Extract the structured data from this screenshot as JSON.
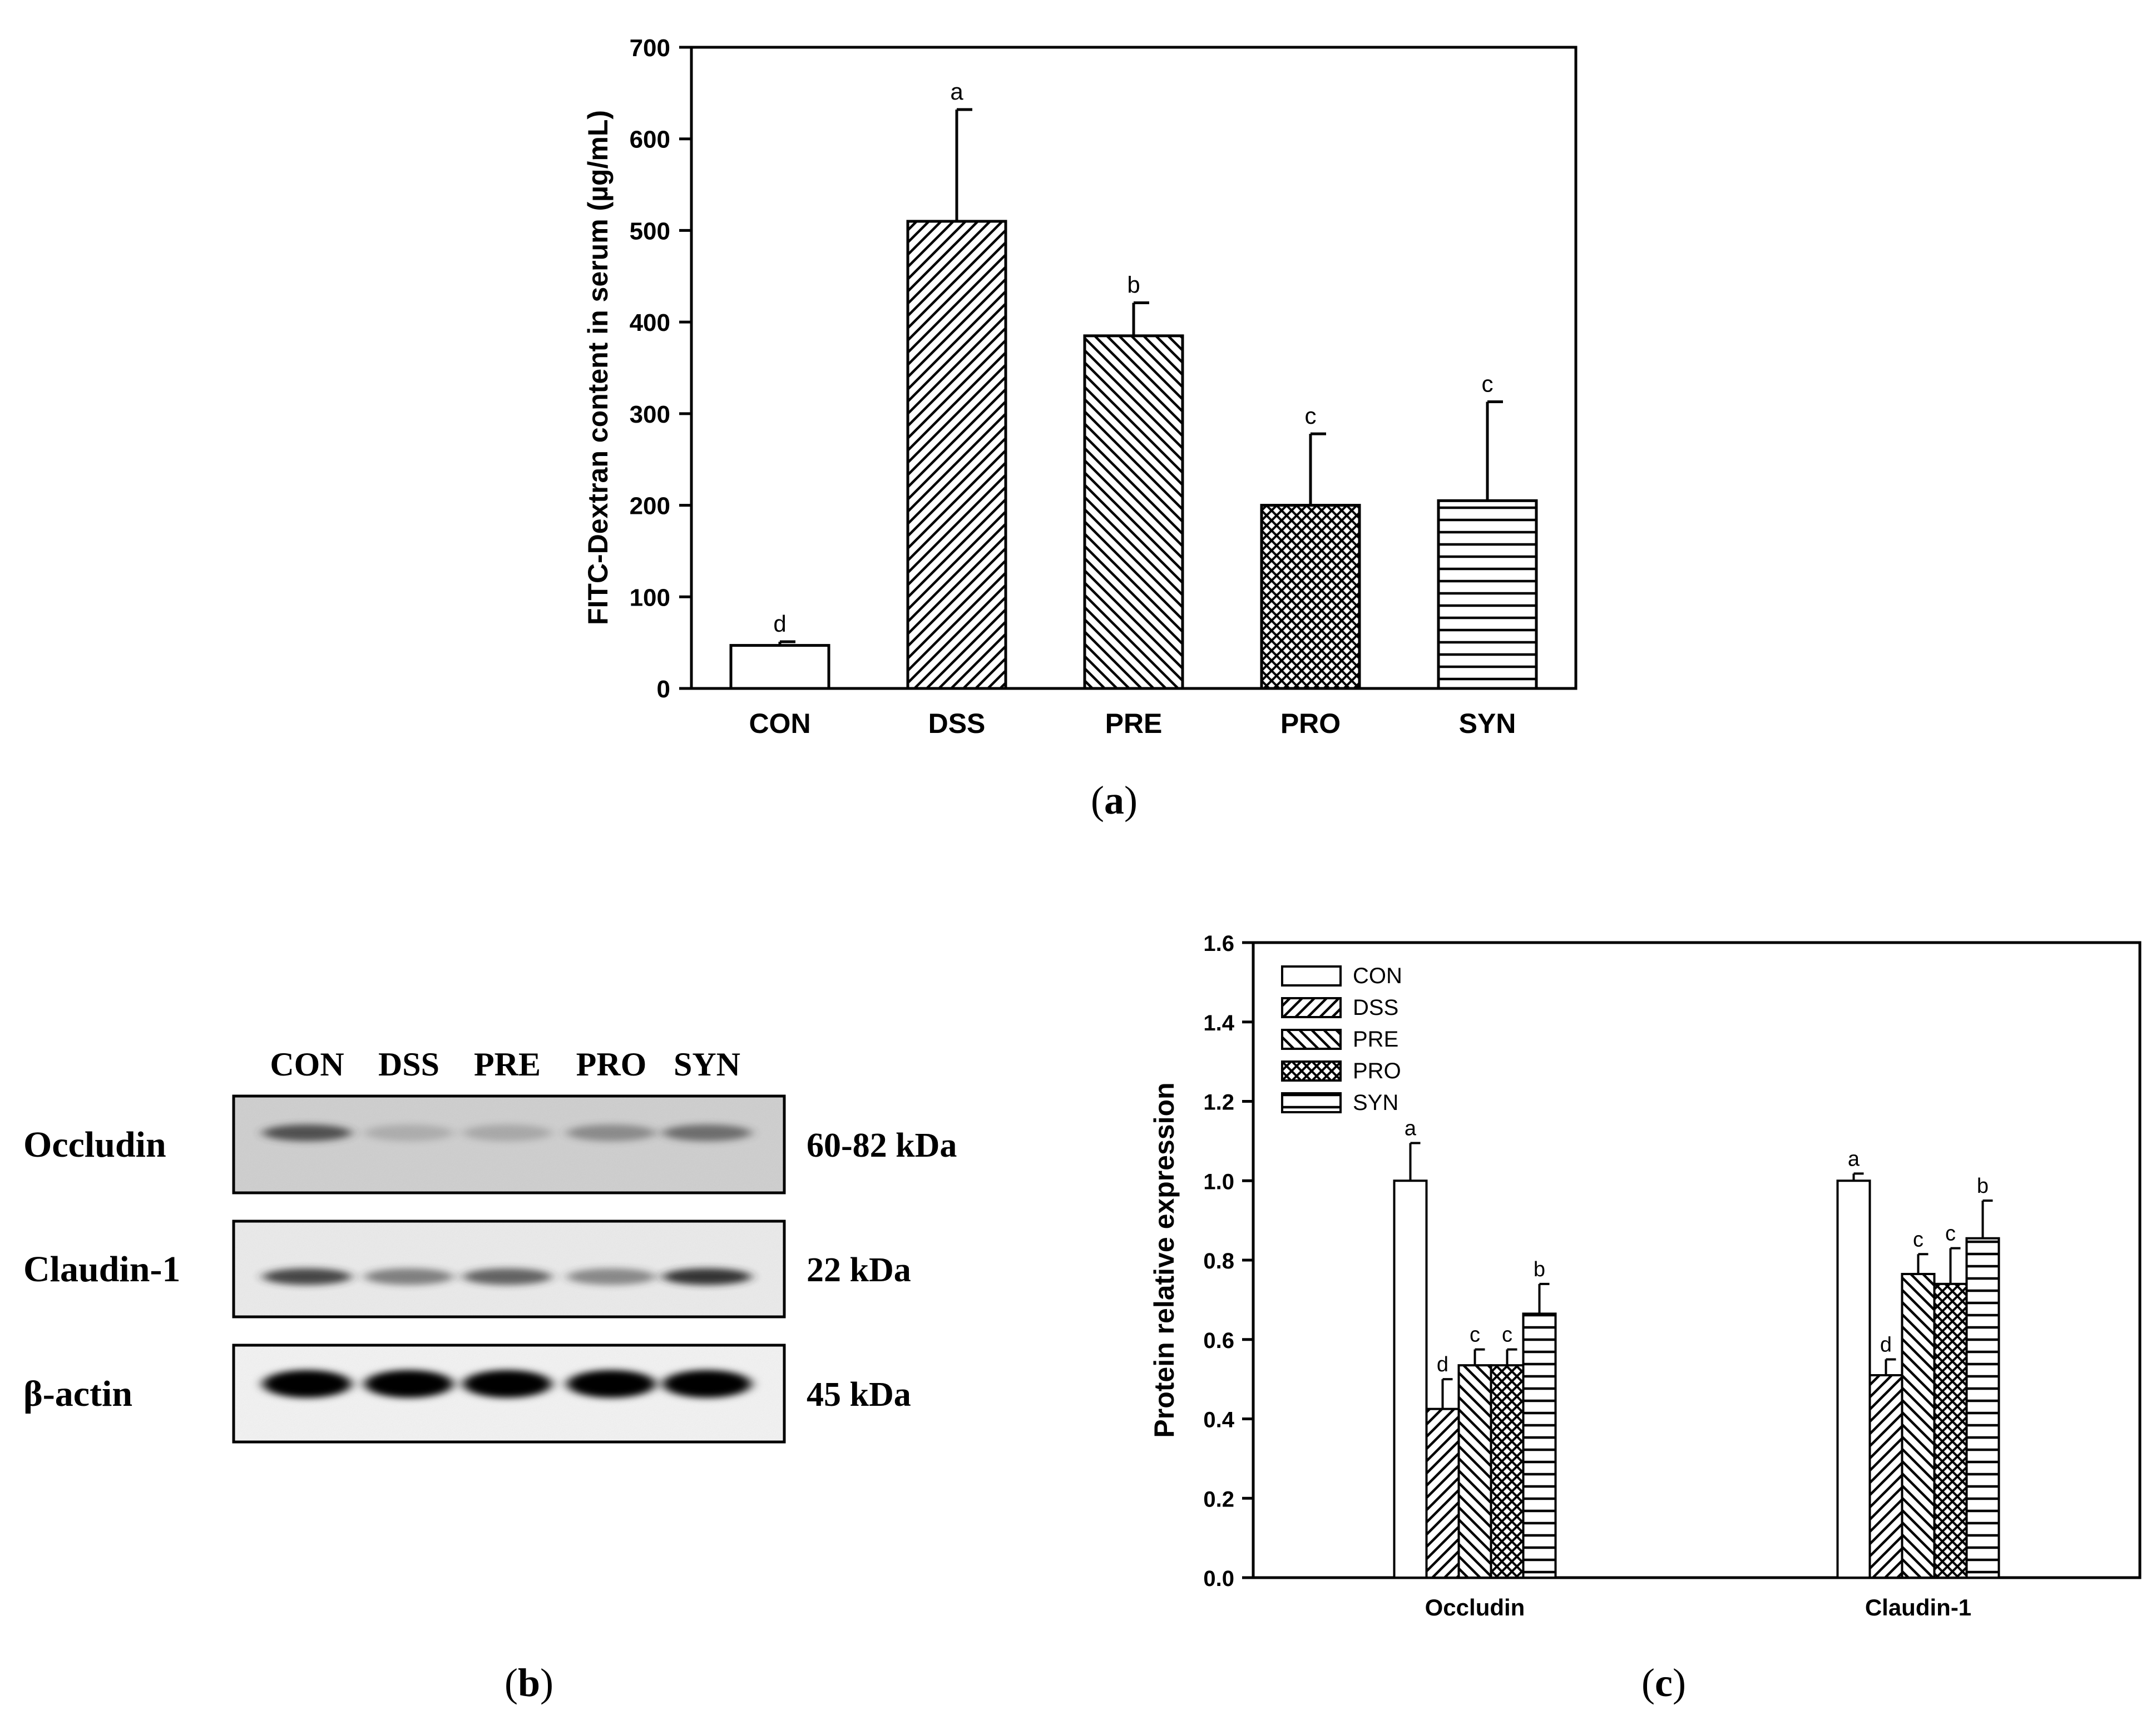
{
  "chart_data": [
    {
      "type": "bar",
      "panel_label": "a",
      "ylabel": "FITC-Dextran content in serum (µg/mL)",
      "xlabel": "",
      "ylim": [
        0,
        700
      ],
      "yticks": [
        "0",
        "100",
        "200",
        "300",
        "400",
        "500",
        "600",
        "700"
      ],
      "categories": [
        "CON",
        "DSS",
        "PRE",
        "PRO",
        "SYN"
      ],
      "values": [
        47,
        510,
        385,
        200,
        205
      ],
      "errors": [
        4,
        122,
        36,
        78,
        108
      ],
      "letters": [
        "d",
        "a",
        "b",
        "c",
        "c"
      ],
      "patterns": [
        "none",
        "diag-up",
        "diag-down",
        "crosshatch",
        "horizontal"
      ]
    },
    {
      "type": "image",
      "panel_label": "b",
      "lanes": [
        "CON",
        "DSS",
        "PRE",
        "PRO",
        "SYN"
      ],
      "rows": [
        {
          "protein": "Occludin",
          "size": "60-82 kDa"
        },
        {
          "protein": "Claudin-1",
          "size": "22 kDa"
        },
        {
          "protein": "β-actin",
          "size": "45 kDa"
        }
      ]
    },
    {
      "type": "bar",
      "panel_label": "c",
      "ylabel": "Protein relative expression",
      "xlabel": "",
      "ylim": [
        0,
        1.6
      ],
      "yticks": [
        "0.0",
        "0.2",
        "0.4",
        "0.6",
        "0.8",
        "1.0",
        "1.2",
        "1.4",
        "1.6"
      ],
      "categories": [
        "Occludin",
        "Claudin-1"
      ],
      "legend_position": "top-left",
      "series": [
        {
          "name": "CON",
          "pattern": "none",
          "values": [
            1.0,
            1.0
          ],
          "errors": [
            0.095,
            0.018
          ],
          "letters": [
            "a",
            "a"
          ]
        },
        {
          "name": "DSS",
          "pattern": "diag-up",
          "values": [
            0.425,
            0.51
          ],
          "errors": [
            0.075,
            0.04
          ],
          "letters": [
            "d",
            "d"
          ]
        },
        {
          "name": "PRE",
          "pattern": "diag-down",
          "values": [
            0.535,
            0.765
          ],
          "errors": [
            0.04,
            0.05
          ],
          "letters": [
            "c",
            "c"
          ]
        },
        {
          "name": "PRO",
          "pattern": "crosshatch",
          "values": [
            0.535,
            0.74
          ],
          "errors": [
            0.04,
            0.09
          ],
          "letters": [
            "c",
            "c"
          ]
        },
        {
          "name": "SYN",
          "pattern": "horizontal",
          "values": [
            0.665,
            0.855
          ],
          "errors": [
            0.075,
            0.095
          ],
          "letters": [
            "b",
            "b"
          ]
        }
      ]
    }
  ]
}
